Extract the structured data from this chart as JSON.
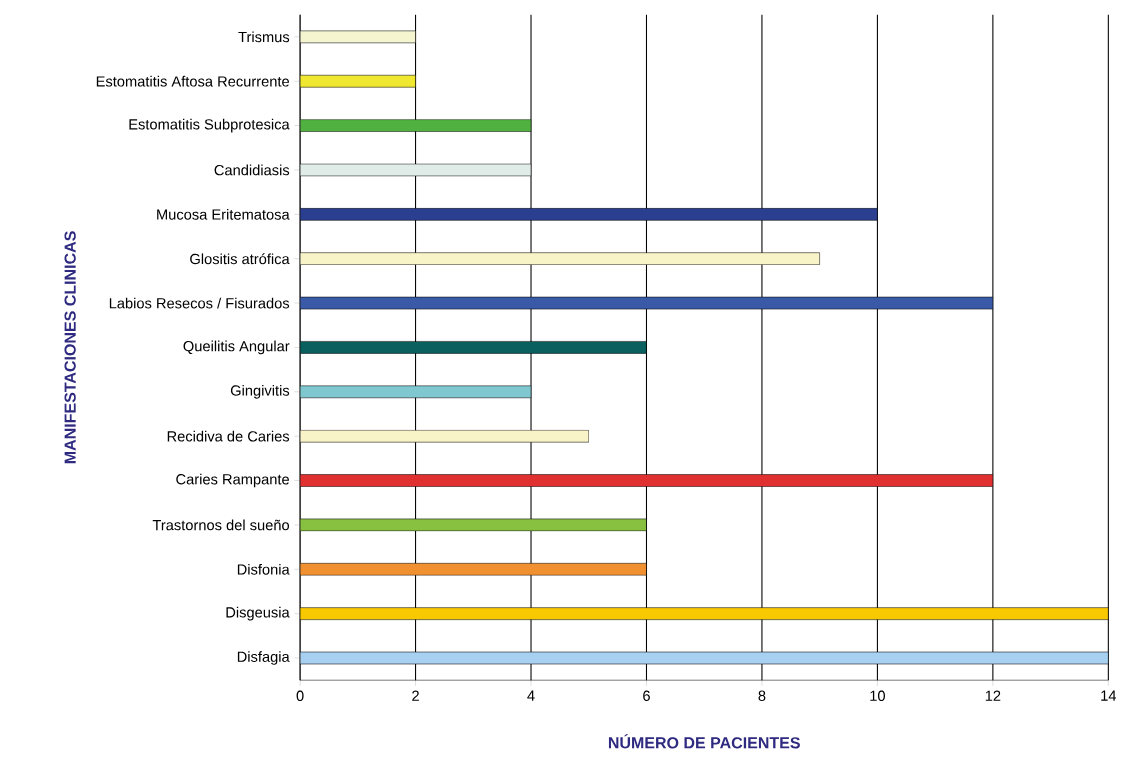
{
  "chart_data": {
    "type": "bar",
    "orientation": "horizontal",
    "xlabel": "NÚMERO DE PACIENTES",
    "ylabel": "MANIFESTACIONES CLINICAS",
    "categories": [
      "Trismus",
      "Estomatitis Aftosa Recurrente",
      "Estomatitis Subprotesica",
      "Candidiasis",
      "Mucosa Eritematosa",
      "Glositis atrófica",
      "Labios Resecos / Fisurados",
      "Queilitis Angular",
      "Gingivitis",
      "Recidiva de Caries",
      "Caries Rampante",
      "Trastornos del sueño",
      "Disfonia",
      "Disgeusia",
      "Disfagia"
    ],
    "values": [
      2,
      2,
      4,
      4,
      10,
      9,
      12,
      6,
      4,
      5,
      12,
      6,
      6,
      14,
      14
    ],
    "colors": [
      "#f5f5d0",
      "#f0e830",
      "#50b040",
      "#e0ece8",
      "#2a3f8f",
      "#f8f4c8",
      "#3a5aa8",
      "#0a5f5f",
      "#80c8d0",
      "#f8f4c8",
      "#e03030",
      "#88c040",
      "#f09030",
      "#f8c800",
      "#a8d0f0"
    ],
    "xlim": [
      0,
      14
    ],
    "xticks": [
      0,
      2,
      4,
      6,
      8,
      10,
      12,
      14
    ],
    "grid": "x"
  }
}
